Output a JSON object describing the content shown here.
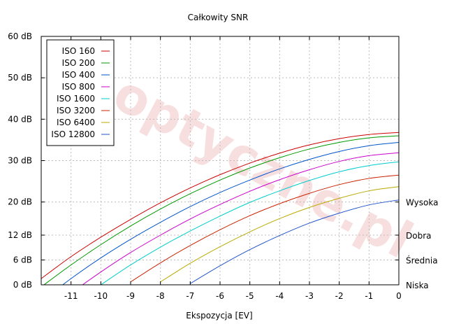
{
  "chart_data": {
    "type": "line",
    "title": "Całkowity SNR",
    "xlabel": "Ekspozycja [EV]",
    "ylabel": "",
    "xlim": [
      -12,
      0
    ],
    "ylim": [
      0,
      60
    ],
    "grid": true,
    "legend_position": "top-left",
    "watermark": "optyczne.pl",
    "x_ticks": [
      {
        "value": -11,
        "label": "-11"
      },
      {
        "value": -10,
        "label": "-10"
      },
      {
        "value": -9,
        "label": "-9"
      },
      {
        "value": -8,
        "label": "-8"
      },
      {
        "value": -7,
        "label": "-7"
      },
      {
        "value": -6,
        "label": "-6"
      },
      {
        "value": -5,
        "label": "-5"
      },
      {
        "value": -4,
        "label": "-4"
      },
      {
        "value": -3,
        "label": "-3"
      },
      {
        "value": -2,
        "label": "-2"
      },
      {
        "value": -1,
        "label": "-1"
      },
      {
        "value": 0,
        "label": "0"
      }
    ],
    "y_ticks": [
      {
        "value": 0,
        "label": "0 dB"
      },
      {
        "value": 6,
        "label": "6 dB"
      },
      {
        "value": 12,
        "label": "12 dB"
      },
      {
        "value": 20,
        "label": "20 dB"
      },
      {
        "value": 30,
        "label": "30 dB"
      },
      {
        "value": 40,
        "label": "40 dB"
      },
      {
        "value": 50,
        "label": "50 dB"
      },
      {
        "value": 60,
        "label": "60 dB"
      }
    ],
    "y2_ticks": [
      {
        "value": 0,
        "label": "Niska"
      },
      {
        "value": 6,
        "label": "Średnia"
      },
      {
        "value": 12,
        "label": "Dobra"
      },
      {
        "value": 20,
        "label": "Wysoka"
      }
    ],
    "x": [
      -12,
      -11,
      -10,
      -9,
      -8,
      -7,
      -6,
      -5,
      -4,
      -3,
      -2,
      -1,
      0
    ],
    "series": [
      {
        "name": "ISO 160",
        "color": "#cc0000",
        "values": [
          1.5,
          6.8,
          11.5,
          15.8,
          19.8,
          23.4,
          26.6,
          29.4,
          31.8,
          33.8,
          35.3,
          36.3,
          36.8
        ]
      },
      {
        "name": "ISO 200",
        "color": "#009900",
        "values": [
          -0.5,
          4.8,
          9.7,
          14.2,
          18.3,
          22.0,
          25.3,
          28.2,
          30.7,
          32.8,
          34.4,
          35.5,
          36.0
        ]
      },
      {
        "name": "ISO 400",
        "color": "#0055cc",
        "values": [
          -4.0,
          1.5,
          6.5,
          11.0,
          15.1,
          18.9,
          22.3,
          25.3,
          28.0,
          30.3,
          32.2,
          33.6,
          34.4
        ]
      },
      {
        "name": "ISO 800",
        "color": "#cc00cc",
        "values": [
          null,
          -2.0,
          3.1,
          7.8,
          12.0,
          15.9,
          19.4,
          22.6,
          25.4,
          27.8,
          29.8,
          31.2,
          31.9
        ]
      },
      {
        "name": "ISO 1600",
        "color": "#00cccc",
        "values": [
          null,
          null,
          0.0,
          4.8,
          9.1,
          13.0,
          16.6,
          19.9,
          22.7,
          25.2,
          27.3,
          28.8,
          29.7
        ]
      },
      {
        "name": "ISO 3200",
        "color": "#cc2200",
        "values": [
          null,
          null,
          null,
          0.7,
          5.3,
          9.5,
          13.3,
          16.7,
          19.6,
          22.1,
          24.2,
          25.7,
          26.5
        ]
      },
      {
        "name": "ISO 6400",
        "color": "#bbaa00",
        "values": [
          null,
          null,
          null,
          null,
          0.7,
          5.2,
          9.2,
          12.8,
          16.0,
          18.7,
          20.9,
          22.7,
          23.7
        ]
      },
      {
        "name": "ISO 12800",
        "color": "#2255cc",
        "values": [
          null,
          null,
          null,
          null,
          null,
          0.3,
          4.6,
          8.5,
          11.9,
          14.9,
          17.3,
          19.3,
          20.5
        ]
      }
    ]
  }
}
